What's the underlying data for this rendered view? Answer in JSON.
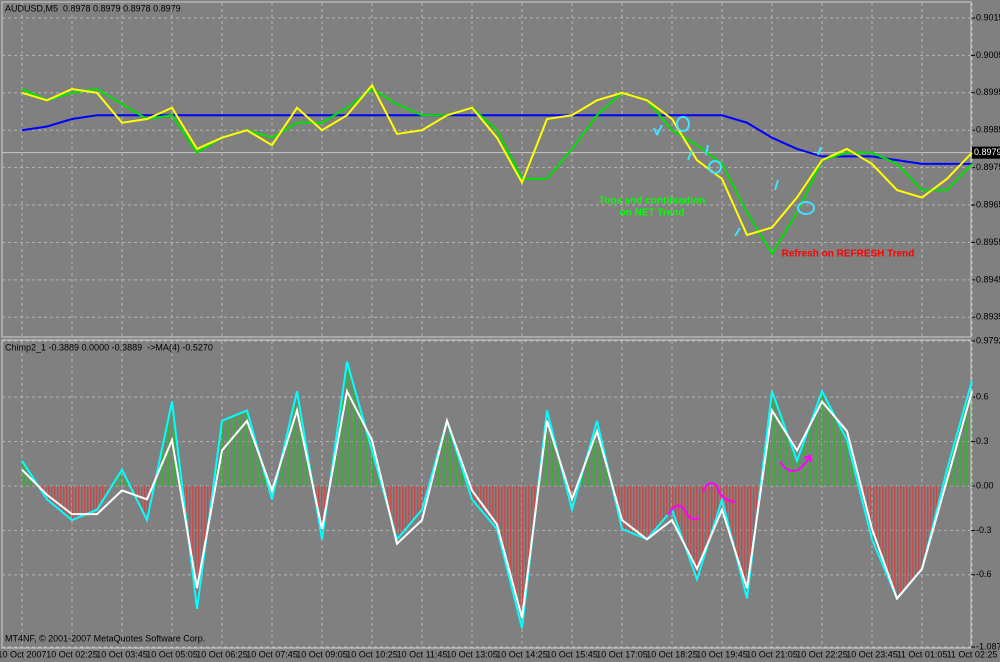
{
  "chart_data": [
    {
      "type": "line",
      "title": "AUDUSD,M5  0.8978 0.8979 0.8978 0.8979",
      "ylim": [
        0.893,
        0.9019
      ],
      "yticks": [
        0.9015,
        0.9005,
        0.8995,
        0.8985,
        0.8975,
        0.8965,
        0.8955,
        0.8945,
        0.8935
      ],
      "grid": true,
      "current_price": 0.8979,
      "series": [
        {
          "color": "#0000ff",
          "values": [
            0.8985,
            0.8986,
            0.8988,
            0.8989,
            0.8989,
            0.8989,
            0.8989,
            0.8989,
            0.8989,
            0.8989,
            0.8989,
            0.8989,
            0.8989,
            0.8989,
            0.8989,
            0.8989,
            0.8989,
            0.8989,
            0.8989,
            0.8989,
            0.8989,
            0.8989,
            0.8989,
            0.8989,
            0.8989,
            0.8989,
            0.8989,
            0.8989,
            0.8989,
            0.8987,
            0.8983,
            0.898,
            0.8978,
            0.8978,
            0.8978,
            0.8977,
            0.8976,
            0.8976,
            0.8976
          ]
        },
        {
          "color": "#00e000",
          "values": [
            0.8996,
            0.8993,
            0.8995,
            0.8996,
            0.8992,
            0.8988,
            0.8989,
            0.8979,
            0.8983,
            0.8985,
            0.8983,
            0.8987,
            0.8987,
            0.8991,
            0.8996,
            0.8992,
            0.8989,
            0.8989,
            0.8991,
            0.8985,
            0.8972,
            0.8972,
            0.898,
            0.8989,
            0.8995,
            0.8993,
            0.8985,
            0.8981,
            0.8976,
            0.8963,
            0.8952,
            0.8963,
            0.8977,
            0.8979,
            0.8979,
            0.8976,
            0.8969,
            0.8969,
            0.8976
          ]
        },
        {
          "color": "#ffff00",
          "values": [
            0.8995,
            0.8993,
            0.8996,
            0.8995,
            0.8987,
            0.8988,
            0.8991,
            0.898,
            0.8983,
            0.8985,
            0.8981,
            0.8991,
            0.8985,
            0.8989,
            0.8997,
            0.8984,
            0.8985,
            0.8989,
            0.8991,
            0.8983,
            0.8971,
            0.8988,
            0.8989,
            0.8993,
            0.8995,
            0.8993,
            0.8988,
            0.8977,
            0.8972,
            0.8957,
            0.8959,
            0.8967,
            0.8977,
            0.898,
            0.8976,
            0.8969,
            0.8967,
            0.8972,
            0.8979
          ]
        }
      ],
      "annotations": [
        {
          "lines": [
            "Tops and continuation",
            "on NET Trend"
          ],
          "color": "#00ff00"
        },
        {
          "lines": [
            "Refresh on REFRESH Trend"
          ],
          "color": "#ff0000"
        }
      ]
    },
    {
      "type": "area",
      "title": "Chimp2_1 -0.3889 0.0000 -0.3889  ->MA(4) -0.5270",
      "footer": "MT4NF, © 2001-2007 MetaQuotes Software Corp.",
      "categories": [
        "10 Oct 2007",
        null,
        "10 Oct 02:25",
        null,
        "10 Oct 03:45",
        null,
        "10 Oct 05:05",
        null,
        "10 Oct 06:25",
        null,
        "10 Oct 07:45",
        null,
        "10 Oct 09:05",
        null,
        "10 Oct 10:25",
        null,
        "10 Oct 11:45",
        null,
        "10 Oct 13:05",
        null,
        "10 Oct 14:25",
        null,
        "10 Oct 15:45",
        null,
        "10 Oct 17:05",
        null,
        "10 Oct 18:25",
        null,
        "10 Oct 19:45",
        null,
        "10 Oct 21:05",
        null,
        "10 Oct 22:25",
        null,
        "10 Oct 23:45",
        null,
        "11 Oct 01:05",
        null,
        "11 Oct 02:25"
      ],
      "ylim": [
        -1.0873,
        0.9792
      ],
      "yticks": [
        0.9792,
        0.6,
        0.3,
        {
          "value": 0,
          "label": "0.00"
        },
        -0.3,
        -0.6,
        -1.0873
      ],
      "grid": true,
      "positive_color": "#3fa83f",
      "negative_color": "#c84a4a",
      "series": [
        {
          "color": "#00ffff",
          "values": [
            0.17,
            -0.09,
            -0.23,
            -0.16,
            0.11,
            -0.23,
            0.57,
            -0.83,
            0.44,
            0.51,
            -0.09,
            0.64,
            -0.36,
            0.84,
            0.24,
            -0.36,
            -0.16,
            0.44,
            -0.09,
            -0.29,
            -0.96,
            0.51,
            -0.16,
            0.44,
            -0.29,
            -0.36,
            -0.16,
            -0.63,
            -0.09,
            -0.76,
            0.64,
            0.17,
            0.64,
            0.31,
            -0.36,
            -0.76,
            -0.56,
            0.11,
            0.71
          ]
        },
        {
          "color": "#ffffff",
          "values": [
            0.11,
            -0.06,
            -0.19,
            -0.19,
            -0.03,
            -0.09,
            0.31,
            -0.69,
            0.24,
            0.44,
            -0.03,
            0.51,
            -0.29,
            0.64,
            0.31,
            -0.39,
            -0.23,
            0.44,
            -0.03,
            -0.26,
            -0.89,
            0.44,
            -0.09,
            0.37,
            -0.23,
            -0.36,
            -0.23,
            -0.56,
            -0.16,
            -0.69,
            0.51,
            0.24,
            0.57,
            0.37,
            -0.29,
            -0.76,
            -0.56,
            0.04,
            0.64
          ]
        }
      ]
    }
  ]
}
